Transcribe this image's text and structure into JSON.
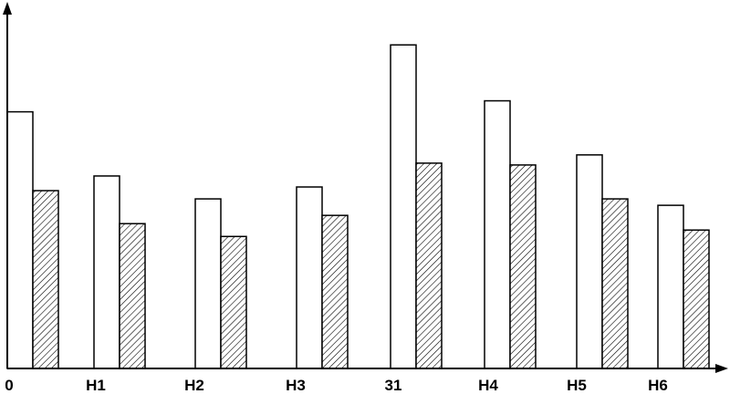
{
  "chart_data": {
    "type": "bar",
    "categories": [
      "0",
      "H1",
      "H2",
      "H3",
      "31",
      "H4",
      "H5",
      "H6"
    ],
    "series": [
      {
        "pattern": "open",
        "values": [
          28.0,
          21.0,
          18.5,
          19.8,
          35.3,
          29.2,
          23.3,
          17.8
        ]
      },
      {
        "pattern": "hatched",
        "values": [
          19.4,
          15.8,
          14.4,
          16.7,
          22.4,
          22.2,
          18.5,
          15.1
        ]
      }
    ],
    "ylim": [
      0,
      40
    ],
    "grid": false,
    "legend": "none",
    "colors": {
      "open_fill": "#ffffff",
      "hatch_fill": "#ffffff",
      "stroke": "#000000"
    }
  }
}
